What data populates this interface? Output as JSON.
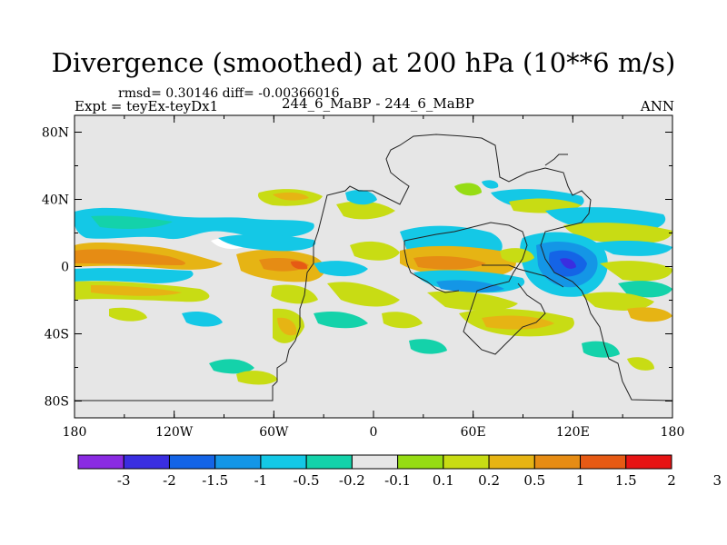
{
  "header": {
    "title": "Divergence (smoothed) at 200 hPa (10**6 m/s)",
    "stats": "rmsd= 0.30146 diff= -0.00366016",
    "expt": "Expt = teyEx-teyDx1",
    "subtitle": "244_6_MaBP - 244_6_MaBP",
    "season": "ANN"
  },
  "map": {
    "background_color": "#e6e6e6",
    "lon_labels": [
      "180",
      "120W",
      "60W",
      "0",
      "60E",
      "120E",
      "180"
    ],
    "lat_labels": [
      "80N",
      "40N",
      "0",
      "40S",
      "80S"
    ]
  },
  "colorbar": {
    "colors": [
      "#8a2be2",
      "#3a2ee0",
      "#1464e6",
      "#1496e6",
      "#14c8e6",
      "#14d2aa",
      "#e6e6e6",
      "#96dc14",
      "#c8dc14",
      "#e6b414",
      "#e68c14",
      "#e65a14",
      "#e61414"
    ],
    "labels": [
      "-3",
      "-2",
      "-1.5",
      "-1",
      "-0.5",
      "-0.2",
      "-0.1",
      "0.1",
      "0.2",
      "0.5",
      "1",
      "1.5",
      "2",
      "3"
    ]
  }
}
